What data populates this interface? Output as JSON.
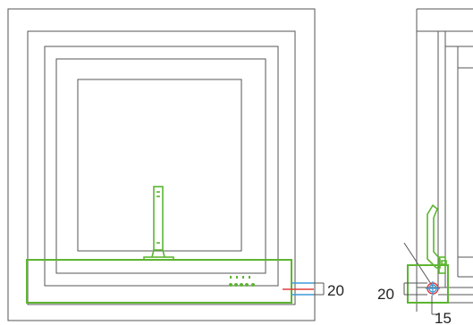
{
  "colors": {
    "outline": "#555555",
    "green": "#5cb531",
    "red": "#e03b3b",
    "blue": "#3a9ad9",
    "text": "#222222"
  },
  "labels": {
    "front_vertical_offset": "20",
    "side_vertical_offset": "20",
    "side_horizontal_offset": "15"
  }
}
